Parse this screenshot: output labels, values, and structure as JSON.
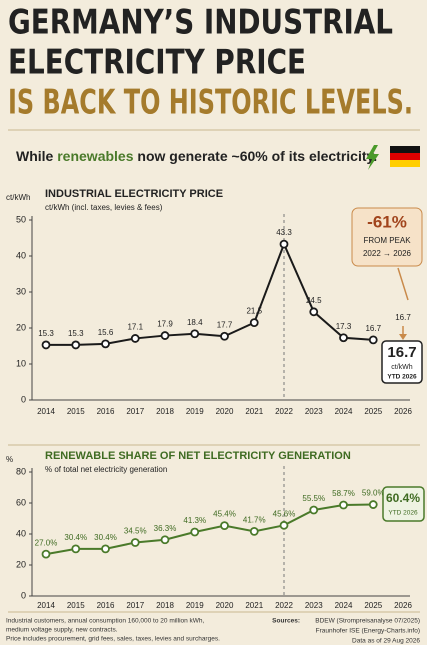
{
  "header": {
    "title": [
      "GERMANY’S INDUSTRIAL",
      "ELECTRICITY PRICE",
      "IS BACK TO HISTORIC LEVELS."
    ],
    "subtitle": [
      "While",
      "renewables",
      "now generate ~60% of its electricity."
    ]
  },
  "chart_data": [
    {
      "type": "line",
      "title": "INDUSTRIAL ELECTRICITY PRICE",
      "subtitle": "ct/kWh (incl. taxes, levies & fees)",
      "y_label": "ct/kWh",
      "categories": [
        "2014",
        "2015",
        "2016",
        "2017",
        "2018",
        "2019",
        "2020",
        "2021",
        "2022",
        "2023",
        "2024",
        "2025",
        "2026"
      ],
      "values": [
        15.3,
        15.3,
        15.6,
        17.1,
        17.9,
        18.4,
        17.7,
        21.5,
        43.3,
        24.5,
        17.3,
        16.7,
        null
      ],
      "color": "#1a1a1a",
      "ylim": [
        0,
        50
      ],
      "yticks": [
        0,
        10,
        20,
        30,
        40,
        50
      ],
      "callout": {
        "change": "-61%",
        "note": "FROM PEAK",
        "period": "2022 → 2026"
      },
      "ytd": {
        "value": 16.7,
        "unit": "ct/kWh",
        "label": "YTD 2026"
      }
    },
    {
      "type": "line",
      "title": "RENEWABLE SHARE OF NET ELECTRICITY GENERATION",
      "subtitle": "% of total net electricity generation",
      "y_label": "%",
      "categories": [
        "2014",
        "2015",
        "2016",
        "2017",
        "2018",
        "2019",
        "2020",
        "2021",
        "2022",
        "2023",
        "2024",
        "2025",
        "2026"
      ],
      "values": [
        27.0,
        30.4,
        30.4,
        34.5,
        36.3,
        41.3,
        45.4,
        41.7,
        45.6,
        55.5,
        58.7,
        59.0,
        null
      ],
      "value_labels": [
        "27.0%",
        "30.4%",
        "30.4%",
        "34.5%",
        "36.3%",
        "41.3%",
        "45.4%",
        "41.7%",
        "45.6%",
        "55.5%",
        "58.7%",
        "59.0%",
        null
      ],
      "color": "#4a7a2a",
      "ylim": [
        0,
        80
      ],
      "yticks": [
        0,
        20,
        40,
        60,
        80
      ],
      "ytd": {
        "value": 60.4,
        "display": "60.4%",
        "label": "YTD 2026"
      }
    }
  ],
  "footer": {
    "notes": [
      "Industrial customers, annual consumption 160,000 to 20 million kWh,",
      "medium voltage supply, new contracts.",
      "Price includes procurement, grid fees, sales, taxes, levies and surcharges."
    ],
    "sources_label": "Sources:",
    "sources": [
      "BDEW (Strompreisanalyse 07/2025)",
      "Fraunhofer ISE (Energy-Charts.info)",
      "Data as of 29 Aug 2026"
    ]
  }
}
